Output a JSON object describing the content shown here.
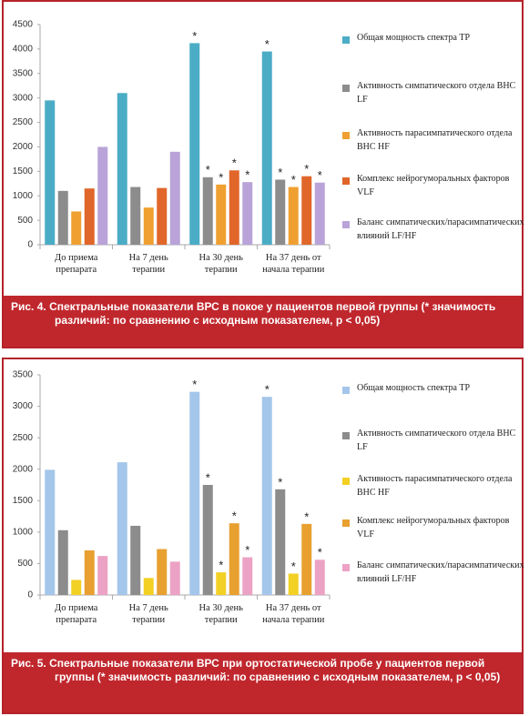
{
  "chart_data": [
    {
      "type": "bar",
      "categories": [
        "До приема препарата",
        "На 7 день терапии",
        "На 30 день терапии",
        "На 37 день от начала терапии"
      ],
      "ylim": [
        0,
        4500
      ],
      "yticks": [
        0,
        500,
        1000,
        1500,
        2000,
        2500,
        3000,
        3500,
        4000,
        4500
      ],
      "grid": false,
      "series": [
        {
          "name": "Общая мощность спектра TP",
          "color": "#4bacc6",
          "values": [
            2950,
            3100,
            4120,
            3950
          ],
          "markers": [
            null,
            null,
            "*",
            "*"
          ]
        },
        {
          "name": "Активность симпатического отдела ВНС LF",
          "color": "#8c8c8c",
          "values": [
            1100,
            1180,
            1380,
            1330
          ],
          "markers": [
            null,
            null,
            "*",
            "*"
          ]
        },
        {
          "name": "Активность парасимпатического отдела ВНС HF",
          "color": "#f0a030",
          "values": [
            680,
            760,
            1230,
            1180
          ],
          "markers": [
            null,
            null,
            "*",
            "*"
          ]
        },
        {
          "name": "Комплекс нейрогуморальных факторов VLF",
          "color": "#e0662a",
          "values": [
            1150,
            1160,
            1520,
            1400
          ],
          "markers": [
            null,
            null,
            "*",
            "*"
          ]
        },
        {
          "name": "Баланс симпатических/парасимпатических влияний LF/HF",
          "color": "#b9a3d8",
          "values": [
            2000,
            1900,
            1280,
            1270
          ],
          "markers": [
            null,
            null,
            "*",
            "*"
          ]
        }
      ],
      "caption": "Рис. 4. Спектральные показатели ВРС в покое у пациентов первой группы (* значимость различий: по сравнению с исходным показателем, р < 0,05)"
    },
    {
      "type": "bar",
      "categories": [
        "До приема препарата",
        "На 7 день терапии",
        "На 30 день терапии",
        "На 37 день от начала терапии"
      ],
      "ylim": [
        0,
        3500
      ],
      "yticks": [
        0,
        500,
        1000,
        1500,
        2000,
        2500,
        3000,
        3500
      ],
      "grid": false,
      "series": [
        {
          "name": "Общая мощность спектра TP",
          "color": "#a4c6ea",
          "values": [
            1990,
            2110,
            3230,
            3150
          ],
          "markers": [
            null,
            null,
            "*",
            "*"
          ]
        },
        {
          "name": "Активность симпатического отдела ВНС LF",
          "color": "#8c8c8c",
          "values": [
            1030,
            1100,
            1750,
            1680
          ],
          "markers": [
            null,
            null,
            "*",
            "*"
          ]
        },
        {
          "name": "Активность парасимпатического отдела ВНС HF",
          "color": "#f2d024",
          "values": [
            240,
            270,
            360,
            340
          ],
          "markers": [
            null,
            null,
            "*",
            "*"
          ]
        },
        {
          "name": "Комплекс нейрогуморальных факторов VLF",
          "color": "#e8a030",
          "values": [
            710,
            730,
            1140,
            1130
          ],
          "markers": [
            null,
            null,
            "*",
            "*"
          ]
        },
        {
          "name": "Баланс симпатических/парасимпатических влияний LF/HF",
          "color": "#eca2c4",
          "values": [
            620,
            530,
            600,
            560
          ],
          "markers": [
            null,
            null,
            "*",
            "*"
          ]
        }
      ],
      "caption": "Рис. 5. Спектральные показатели ВРС при ортостатической пробе у пациентов первой группы (* значимость различий: по сравнению с исходным показателем, р < 0,05)"
    }
  ]
}
